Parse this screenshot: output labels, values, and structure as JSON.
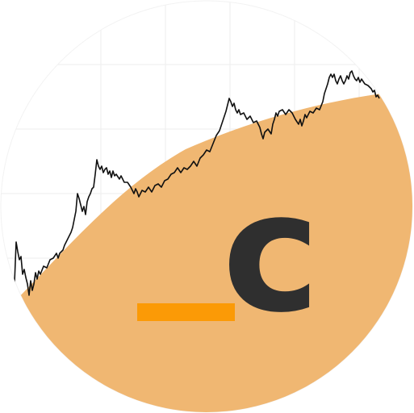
{
  "logo": {
    "letter": "c",
    "underscore": "_",
    "colors": {
      "background": "#ffffff",
      "circle_outline": "#f2f2f2",
      "grid": "#eeeeee",
      "fill": "#f0b772",
      "line": "#111111",
      "letter": "#2f2f2f",
      "underscore": "#fb9a06"
    },
    "icon_names": [
      "price-chart-line",
      "letter-c",
      "underscore-bar"
    ]
  }
}
